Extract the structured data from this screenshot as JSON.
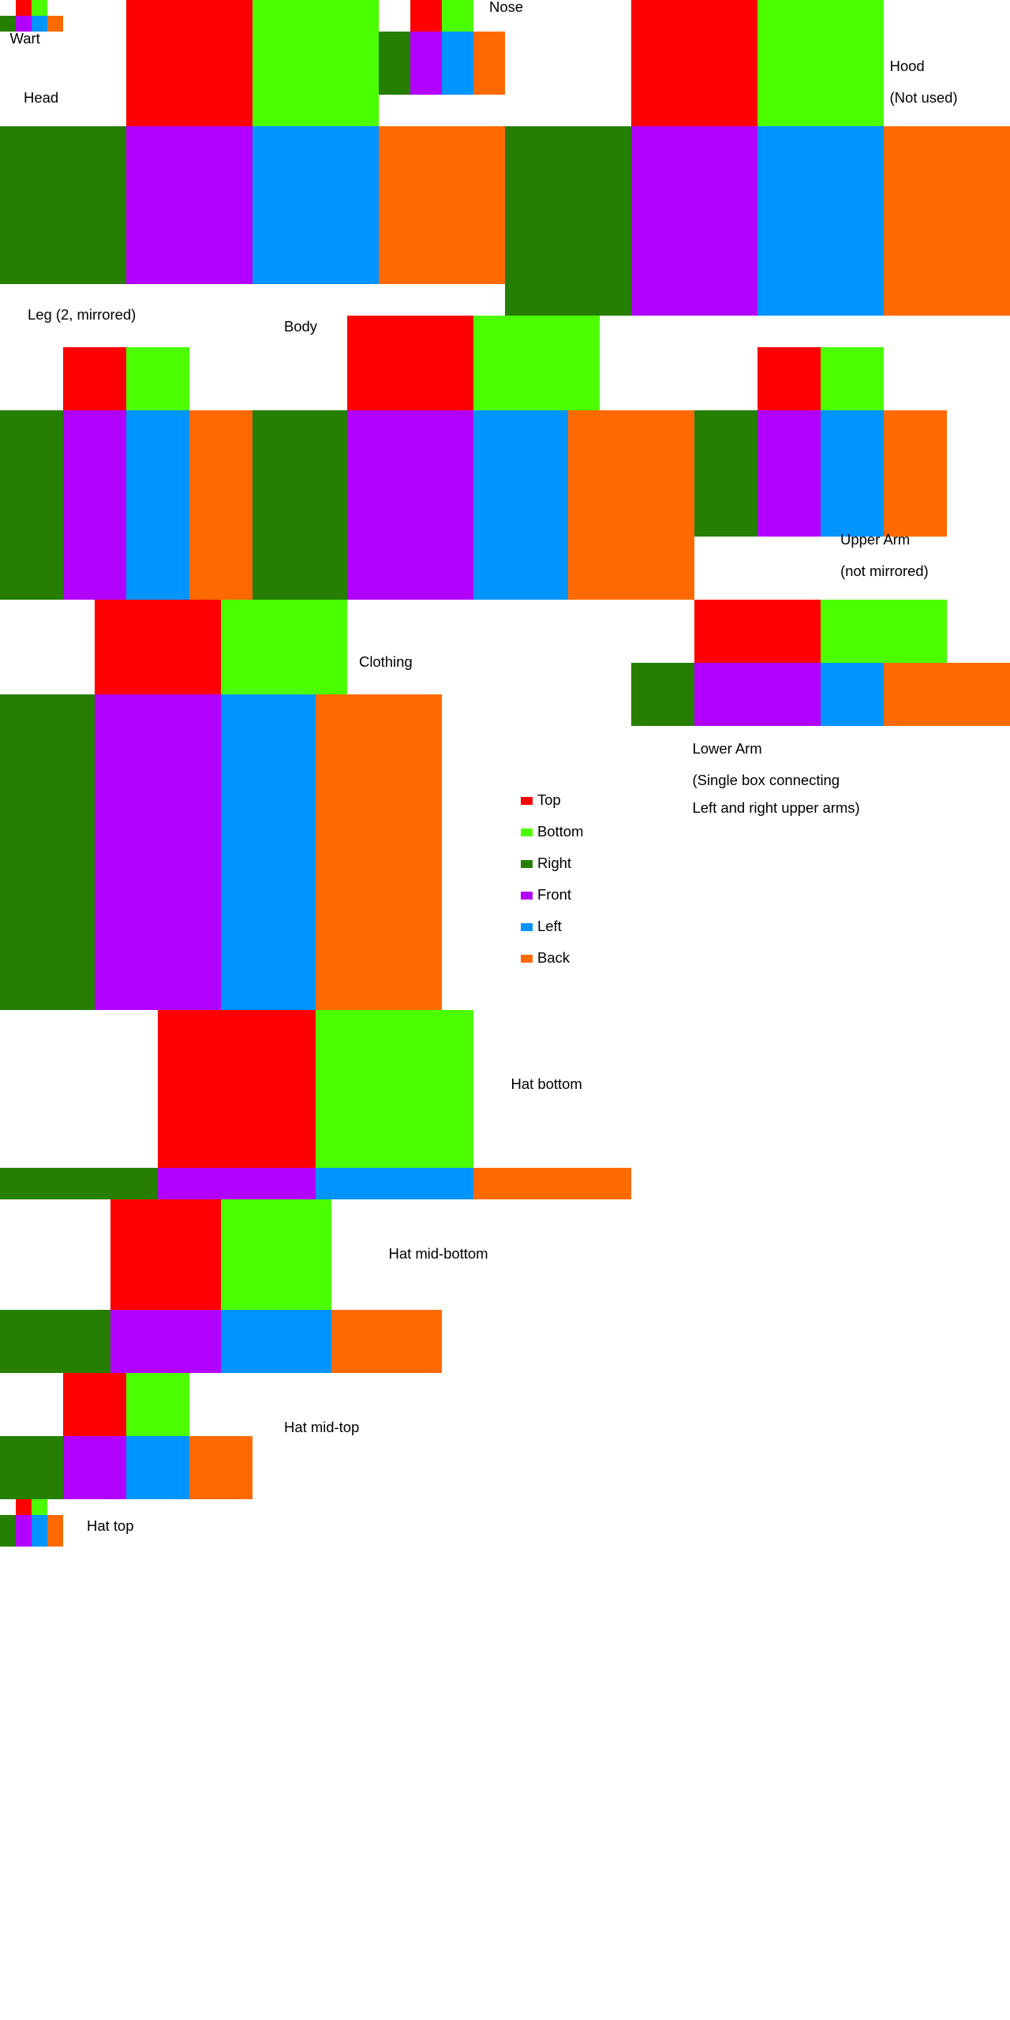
{
  "colors": {
    "top": "#ff0000",
    "bottom": "#4cff00",
    "right": "#267f00",
    "front": "#b200ff",
    "left": "#0094ff",
    "back": "#ff6a00"
  },
  "legend": {
    "items": [
      {
        "face": "top",
        "label": "Top"
      },
      {
        "face": "bottom",
        "label": "Bottom"
      },
      {
        "face": "right",
        "label": "Right"
      },
      {
        "face": "front",
        "label": "Front"
      },
      {
        "face": "left",
        "label": "Left"
      },
      {
        "face": "back",
        "label": "Back"
      }
    ]
  },
  "labels": {
    "wart": "Wart",
    "head": "Head",
    "nose": "Nose",
    "hood": [
      "Hood",
      "(Not used)"
    ],
    "leg": "Leg (2, mirrored)",
    "body": "Body",
    "upper_arm": [
      "Upper Arm",
      "(not mirrored)"
    ],
    "clothing": "Clothing",
    "lower_arm": [
      "Lower Arm",
      "(Single box connecting",
      "Left and right upper arms)"
    ],
    "hat_bottom": "Hat bottom",
    "hat_mid_bottom": "Hat mid-bottom",
    "hat_mid_top": "Hat mid-top",
    "hat_top": "Hat top"
  }
}
